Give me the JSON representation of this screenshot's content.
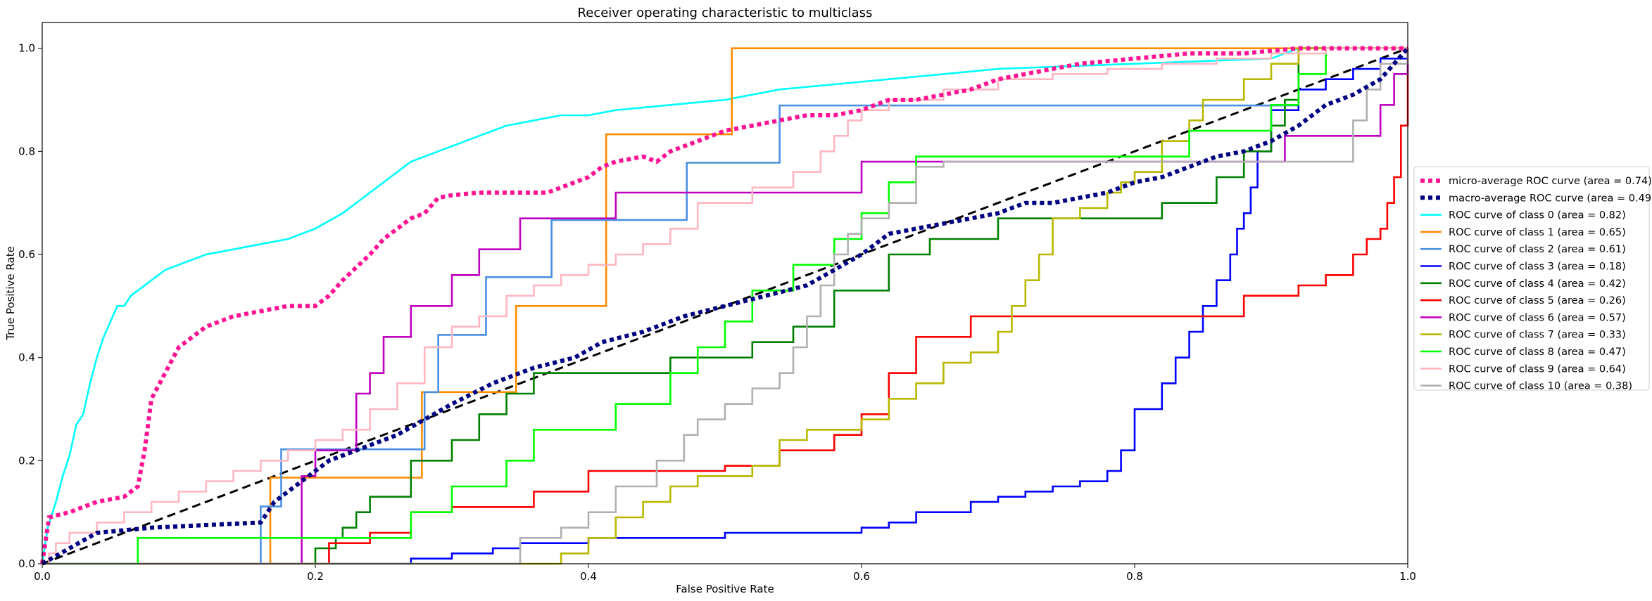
{
  "chart_data": {
    "type": "line",
    "title": "Receiver operating characteristic to multiclass",
    "xlabel": "False Positive Rate",
    "ylabel": "True Positive Rate",
    "xlim": [
      0.0,
      1.0
    ],
    "ylim": [
      0.0,
      1.05
    ],
    "xticks": [
      "0.0",
      "0.2",
      "0.4",
      "0.6",
      "0.8",
      "1.0"
    ],
    "yticks": [
      "0.0",
      "0.2",
      "0.4",
      "0.6",
      "0.8",
      "1.0"
    ],
    "grid": false,
    "legend_position": "outside-right",
    "diagonal": {
      "color": "#000000",
      "x": [
        0,
        1
      ],
      "y": [
        0,
        1
      ]
    },
    "series": [
      {
        "name": "micro-average ROC curve (area = 0.74)",
        "color": "#ff1493",
        "style": "dotted",
        "x": [
          0.0,
          0.005,
          0.02,
          0.04,
          0.06,
          0.07,
          0.075,
          0.08,
          0.09,
          0.1,
          0.11,
          0.12,
          0.13,
          0.14,
          0.16,
          0.18,
          0.2,
          0.21,
          0.22,
          0.24,
          0.25,
          0.26,
          0.27,
          0.28,
          0.29,
          0.3,
          0.32,
          0.34,
          0.36,
          0.37,
          0.38,
          0.4,
          0.41,
          0.42,
          0.44,
          0.45,
          0.46,
          0.48,
          0.5,
          0.52,
          0.54,
          0.56,
          0.58,
          0.6,
          0.62,
          0.64,
          0.66,
          0.68,
          0.7,
          0.72,
          0.74,
          0.76,
          0.8,
          0.84,
          0.88,
          0.92,
          0.96,
          1.0
        ],
        "y": [
          0.0,
          0.09,
          0.1,
          0.12,
          0.13,
          0.15,
          0.22,
          0.32,
          0.37,
          0.42,
          0.44,
          0.46,
          0.47,
          0.48,
          0.49,
          0.5,
          0.5,
          0.52,
          0.55,
          0.6,
          0.63,
          0.65,
          0.67,
          0.68,
          0.71,
          0.715,
          0.72,
          0.72,
          0.72,
          0.72,
          0.73,
          0.75,
          0.77,
          0.78,
          0.79,
          0.78,
          0.8,
          0.82,
          0.84,
          0.85,
          0.86,
          0.87,
          0.87,
          0.88,
          0.9,
          0.9,
          0.91,
          0.92,
          0.94,
          0.95,
          0.96,
          0.97,
          0.98,
          0.99,
          0.99,
          1.0,
          1.0,
          1.0
        ]
      },
      {
        "name": "macro-average ROC curve (area = 0.49)",
        "color": "#000080",
        "style": "dotted",
        "x": [
          0.0,
          0.04,
          0.08,
          0.12,
          0.16,
          0.17,
          0.19,
          0.21,
          0.23,
          0.26,
          0.28,
          0.3,
          0.33,
          0.36,
          0.39,
          0.41,
          0.44,
          0.47,
          0.5,
          0.53,
          0.56,
          0.58,
          0.6,
          0.62,
          0.64,
          0.66,
          0.68,
          0.7,
          0.72,
          0.74,
          0.76,
          0.78,
          0.8,
          0.82,
          0.84,
          0.86,
          0.88,
          0.9,
          0.92,
          0.94,
          0.96,
          0.98,
          1.0
        ],
        "y": [
          0.0,
          0.06,
          0.07,
          0.075,
          0.08,
          0.12,
          0.16,
          0.2,
          0.22,
          0.25,
          0.28,
          0.31,
          0.35,
          0.38,
          0.4,
          0.43,
          0.45,
          0.48,
          0.5,
          0.52,
          0.54,
          0.57,
          0.6,
          0.64,
          0.65,
          0.66,
          0.67,
          0.68,
          0.7,
          0.7,
          0.71,
          0.72,
          0.74,
          0.75,
          0.77,
          0.79,
          0.8,
          0.82,
          0.85,
          0.89,
          0.91,
          0.94,
          1.0
        ]
      },
      {
        "name": "ROC curve of class 0 (area = 0.82)",
        "color": "#00ffff",
        "style": "solid",
        "x": [
          0.0,
          0.004,
          0.01,
          0.015,
          0.02,
          0.025,
          0.03,
          0.035,
          0.04,
          0.045,
          0.05,
          0.055,
          0.06,
          0.065,
          0.07,
          0.08,
          0.09,
          0.1,
          0.11,
          0.12,
          0.14,
          0.16,
          0.18,
          0.2,
          0.22,
          0.23,
          0.24,
          0.25,
          0.26,
          0.27,
          0.28,
          0.29,
          0.3,
          0.31,
          0.32,
          0.33,
          0.34,
          0.36,
          0.38,
          0.4,
          0.42,
          0.46,
          0.5,
          0.54,
          0.58,
          0.62,
          0.7,
          0.8,
          0.9,
          0.92
        ],
        "y": [
          0.0,
          0.07,
          0.12,
          0.17,
          0.21,
          0.27,
          0.29,
          0.35,
          0.4,
          0.44,
          0.47,
          0.5,
          0.5,
          0.52,
          0.53,
          0.55,
          0.57,
          0.58,
          0.59,
          0.6,
          0.61,
          0.62,
          0.63,
          0.65,
          0.68,
          0.7,
          0.72,
          0.74,
          0.76,
          0.78,
          0.79,
          0.8,
          0.81,
          0.82,
          0.83,
          0.84,
          0.85,
          0.86,
          0.87,
          0.87,
          0.88,
          0.89,
          0.9,
          0.92,
          0.93,
          0.94,
          0.96,
          0.97,
          0.98,
          1.0
        ]
      },
      {
        "name": "ROC curve of class 1 (area = 0.65)",
        "color": "#ff8c00",
        "style": "solid",
        "x": [
          0.0,
          0.167,
          0.167,
          0.167,
          0.278,
          0.278,
          0.278,
          0.347,
          0.347,
          0.413,
          0.413,
          0.413,
          0.505,
          0.505,
          1.0
        ],
        "y": [
          0.0,
          0.0,
          0.167,
          0.167,
          0.167,
          0.333,
          0.333,
          0.333,
          0.5,
          0.5,
          0.667,
          0.833,
          0.833,
          1.0,
          1.0
        ],
        "steps": true
      },
      {
        "name": "ROC curve of class 2 (area = 0.61)",
        "color": "#4a90e2",
        "style": "solid",
        "x": [
          0.0,
          0.16,
          0.16,
          0.175,
          0.175,
          0.28,
          0.28,
          0.29,
          0.29,
          0.325,
          0.325,
          0.373,
          0.373,
          0.472,
          0.472,
          0.54,
          0.54,
          0.85,
          0.85,
          0.92,
          0.92,
          1.0
        ],
        "y": [
          0.0,
          0.0,
          0.111,
          0.111,
          0.222,
          0.222,
          0.333,
          0.333,
          0.444,
          0.444,
          0.556,
          0.556,
          0.667,
          0.667,
          0.778,
          0.778,
          0.889,
          0.889,
          0.889,
          0.889,
          1.0,
          1.0
        ]
      },
      {
        "name": "ROC curve of class 3 (area = 0.18)",
        "color": "#0000ff",
        "style": "solid",
        "x": [
          0.0,
          0.27,
          0.3,
          0.33,
          0.35,
          0.4,
          0.5,
          0.6,
          0.62,
          0.64,
          0.68,
          0.7,
          0.72,
          0.74,
          0.76,
          0.78,
          0.79,
          0.8,
          0.82,
          0.83,
          0.84,
          0.85,
          0.86,
          0.87,
          0.875,
          0.88,
          0.885,
          0.89,
          0.9,
          0.92,
          0.94,
          0.96,
          0.98,
          1.0
        ],
        "y": [
          0.0,
          0.01,
          0.02,
          0.03,
          0.04,
          0.05,
          0.06,
          0.07,
          0.08,
          0.1,
          0.12,
          0.13,
          0.14,
          0.15,
          0.16,
          0.18,
          0.22,
          0.3,
          0.35,
          0.4,
          0.45,
          0.5,
          0.55,
          0.6,
          0.65,
          0.68,
          0.73,
          0.8,
          0.88,
          0.92,
          0.94,
          0.96,
          0.98,
          1.0
        ],
        "steps": true
      },
      {
        "name": "ROC curve of class 4 (area = 0.42)",
        "color": "#008000",
        "style": "solid",
        "x": [
          0.0,
          0.2,
          0.2,
          0.215,
          0.22,
          0.23,
          0.24,
          0.27,
          0.3,
          0.32,
          0.34,
          0.36,
          0.4,
          0.46,
          0.52,
          0.55,
          0.58,
          0.62,
          0.65,
          0.7,
          0.75,
          0.82,
          0.86,
          0.88,
          0.9,
          0.91,
          0.92,
          0.94,
          0.96,
          1.0
        ],
        "y": [
          0.0,
          0.0,
          0.03,
          0.05,
          0.07,
          0.1,
          0.13,
          0.2,
          0.24,
          0.29,
          0.33,
          0.37,
          0.37,
          0.4,
          0.43,
          0.46,
          0.53,
          0.6,
          0.63,
          0.67,
          0.67,
          0.7,
          0.75,
          0.8,
          0.85,
          0.9,
          1.0,
          1.0,
          1.0,
          1.0
        ],
        "steps": true
      },
      {
        "name": "ROC curve of class 5 (area = 0.26)",
        "color": "#ff0000",
        "style": "solid",
        "x": [
          0.0,
          0.21,
          0.21,
          0.24,
          0.27,
          0.3,
          0.34,
          0.36,
          0.4,
          0.5,
          0.54,
          0.58,
          0.6,
          0.62,
          0.64,
          0.68,
          0.74,
          0.8,
          0.88,
          0.92,
          0.94,
          0.96,
          0.97,
          0.98,
          0.985,
          0.99,
          0.995,
          1.0
        ],
        "y": [
          0.0,
          0.0,
          0.04,
          0.06,
          0.1,
          0.11,
          0.11,
          0.14,
          0.18,
          0.19,
          0.22,
          0.25,
          0.29,
          0.37,
          0.44,
          0.48,
          0.48,
          0.48,
          0.52,
          0.54,
          0.56,
          0.6,
          0.63,
          0.65,
          0.7,
          0.75,
          0.85,
          1.0
        ],
        "steps": true
      },
      {
        "name": "ROC curve of class 6 (area = 0.57)",
        "color": "#c000c0",
        "style": "solid",
        "x": [
          0.0,
          0.19,
          0.19,
          0.2,
          0.23,
          0.24,
          0.25,
          0.27,
          0.3,
          0.32,
          0.35,
          0.42,
          0.52,
          0.6,
          0.62,
          0.66,
          0.8,
          0.88,
          0.91,
          0.96,
          0.98,
          0.99,
          1.0
        ],
        "y": [
          0.0,
          0.0,
          0.17,
          0.22,
          0.33,
          0.37,
          0.44,
          0.5,
          0.56,
          0.61,
          0.67,
          0.72,
          0.72,
          0.78,
          0.78,
          0.78,
          0.78,
          0.78,
          0.83,
          0.83,
          0.89,
          0.95,
          1.0
        ],
        "steps": true
      },
      {
        "name": "ROC curve of class 7 (area = 0.33)",
        "color": "#b8b800",
        "style": "solid",
        "x": [
          0.0,
          0.38,
          0.38,
          0.4,
          0.42,
          0.44,
          0.46,
          0.48,
          0.52,
          0.54,
          0.56,
          0.6,
          0.62,
          0.64,
          0.66,
          0.68,
          0.7,
          0.71,
          0.72,
          0.73,
          0.74,
          0.76,
          0.78,
          0.79,
          0.8,
          0.82,
          0.84,
          0.85,
          0.88,
          0.9,
          0.92,
          1.0
        ],
        "y": [
          0.0,
          0.0,
          0.02,
          0.05,
          0.09,
          0.12,
          0.15,
          0.17,
          0.19,
          0.24,
          0.26,
          0.28,
          0.32,
          0.35,
          0.39,
          0.41,
          0.45,
          0.5,
          0.55,
          0.6,
          0.67,
          0.69,
          0.72,
          0.74,
          0.76,
          0.82,
          0.86,
          0.9,
          0.94,
          0.97,
          1.0,
          1.0
        ],
        "steps": true
      },
      {
        "name": "ROC curve of class 8 (area = 0.47)",
        "color": "#00ff00",
        "style": "solid",
        "x": [
          0.0,
          0.07,
          0.07,
          0.27,
          0.27,
          0.3,
          0.34,
          0.36,
          0.42,
          0.46,
          0.48,
          0.5,
          0.52,
          0.55,
          0.58,
          0.6,
          0.62,
          0.64,
          0.7,
          0.76,
          0.8,
          0.84,
          0.86,
          0.88,
          0.9,
          0.92,
          0.94,
          0.96,
          1.0
        ],
        "y": [
          0.0,
          0.0,
          0.05,
          0.05,
          0.1,
          0.15,
          0.2,
          0.26,
          0.31,
          0.37,
          0.42,
          0.47,
          0.53,
          0.58,
          0.63,
          0.68,
          0.74,
          0.79,
          0.79,
          0.79,
          0.79,
          0.84,
          0.84,
          0.84,
          0.89,
          0.95,
          1.0,
          1.0,
          1.0
        ],
        "steps": true
      },
      {
        "name": "ROC curve of class 9 (area = 0.64)",
        "color": "#ffb6c1",
        "style": "solid",
        "x": [
          0.0,
          0.005,
          0.01,
          0.02,
          0.04,
          0.06,
          0.08,
          0.1,
          0.12,
          0.14,
          0.16,
          0.18,
          0.2,
          0.22,
          0.24,
          0.26,
          0.28,
          0.3,
          0.32,
          0.34,
          0.36,
          0.38,
          0.4,
          0.42,
          0.44,
          0.46,
          0.48,
          0.52,
          0.55,
          0.57,
          0.58,
          0.59,
          0.6,
          0.62,
          0.66,
          0.7,
          0.74,
          0.78,
          0.82,
          0.86,
          0.9,
          0.94,
          0.98,
          1.0
        ],
        "y": [
          0.0,
          0.02,
          0.04,
          0.06,
          0.08,
          0.1,
          0.12,
          0.14,
          0.16,
          0.18,
          0.2,
          0.22,
          0.24,
          0.26,
          0.3,
          0.35,
          0.42,
          0.46,
          0.48,
          0.52,
          0.54,
          0.56,
          0.58,
          0.6,
          0.62,
          0.65,
          0.7,
          0.73,
          0.76,
          0.8,
          0.83,
          0.86,
          0.88,
          0.9,
          0.92,
          0.94,
          0.95,
          0.96,
          0.97,
          0.98,
          0.99,
          1.0,
          1.0,
          1.0
        ],
        "steps": true
      },
      {
        "name": "ROC curve of class 10 (area = 0.38)",
        "color": "#b0b0b0",
        "style": "solid",
        "x": [
          0.0,
          0.35,
          0.35,
          0.38,
          0.4,
          0.42,
          0.45,
          0.47,
          0.48,
          0.5,
          0.52,
          0.54,
          0.55,
          0.56,
          0.57,
          0.58,
          0.59,
          0.6,
          0.62,
          0.64,
          0.66,
          0.72,
          0.8,
          0.86,
          0.9,
          0.93,
          0.96,
          0.97,
          0.98,
          1.0
        ],
        "y": [
          0.0,
          0.0,
          0.05,
          0.07,
          0.1,
          0.15,
          0.2,
          0.25,
          0.28,
          0.31,
          0.34,
          0.37,
          0.42,
          0.48,
          0.54,
          0.6,
          0.64,
          0.67,
          0.7,
          0.77,
          0.78,
          0.78,
          0.78,
          0.78,
          0.78,
          0.78,
          0.86,
          0.92,
          0.97,
          1.0
        ],
        "steps": true
      }
    ]
  }
}
